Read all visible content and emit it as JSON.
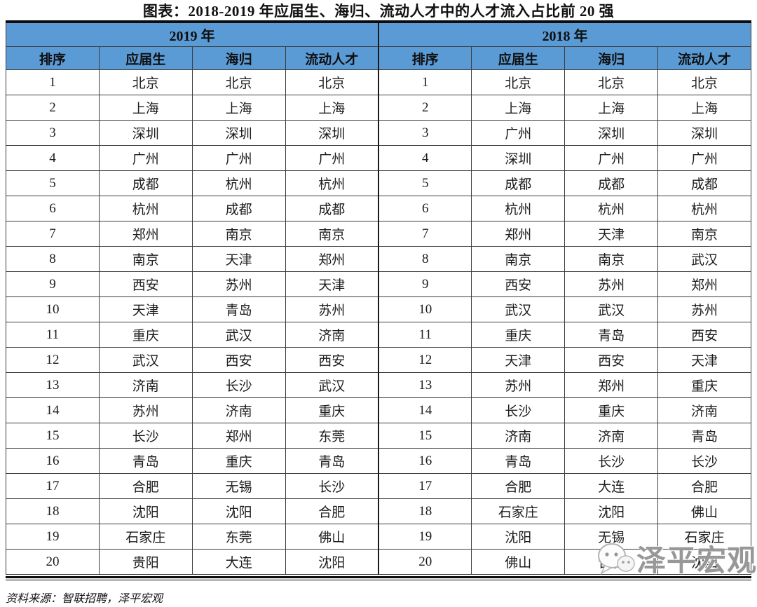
{
  "title": "图表：2018-2019 年应届生、海归、流动人才中的人才流入占比前 20 强",
  "chart_data": {
    "type": "table",
    "title": "图表：2018-2019 年应届生、海归、流动人才中的人才流入占比前 20 强",
    "year_headers": [
      "2019 年",
      "2018 年"
    ],
    "column_headers": [
      "排序",
      "应届生",
      "海归",
      "流动人才",
      "排序",
      "应届生",
      "海归",
      "流动人才"
    ],
    "rows": [
      [
        "1",
        "北京",
        "北京",
        "北京",
        "1",
        "北京",
        "北京",
        "北京"
      ],
      [
        "2",
        "上海",
        "上海",
        "上海",
        "2",
        "上海",
        "上海",
        "上海"
      ],
      [
        "3",
        "深圳",
        "深圳",
        "深圳",
        "3",
        "广州",
        "深圳",
        "深圳"
      ],
      [
        "4",
        "广州",
        "广州",
        "广州",
        "4",
        "深圳",
        "广州",
        "广州"
      ],
      [
        "5",
        "成都",
        "杭州",
        "杭州",
        "5",
        "成都",
        "成都",
        "成都"
      ],
      [
        "6",
        "杭州",
        "成都",
        "成都",
        "6",
        "杭州",
        "杭州",
        "杭州"
      ],
      [
        "7",
        "郑州",
        "南京",
        "南京",
        "7",
        "郑州",
        "天津",
        "南京"
      ],
      [
        "8",
        "南京",
        "天津",
        "郑州",
        "8",
        "南京",
        "南京",
        "武汉"
      ],
      [
        "9",
        "西安",
        "苏州",
        "天津",
        "9",
        "西安",
        "苏州",
        "郑州"
      ],
      [
        "10",
        "天津",
        "青岛",
        "苏州",
        "10",
        "武汉",
        "武汉",
        "苏州"
      ],
      [
        "11",
        "重庆",
        "武汉",
        "济南",
        "11",
        "重庆",
        "青岛",
        "西安"
      ],
      [
        "12",
        "武汉",
        "西安",
        "西安",
        "12",
        "天津",
        "西安",
        "天津"
      ],
      [
        "13",
        "济南",
        "长沙",
        "武汉",
        "13",
        "苏州",
        "郑州",
        "重庆"
      ],
      [
        "14",
        "苏州",
        "济南",
        "重庆",
        "14",
        "长沙",
        "重庆",
        "济南"
      ],
      [
        "15",
        "长沙",
        "郑州",
        "东莞",
        "15",
        "济南",
        "济南",
        "青岛"
      ],
      [
        "16",
        "青岛",
        "重庆",
        "青岛",
        "16",
        "青岛",
        "长沙",
        "长沙"
      ],
      [
        "17",
        "合肥",
        "无锡",
        "长沙",
        "17",
        "合肥",
        "大连",
        "合肥"
      ],
      [
        "18",
        "沈阳",
        "沈阳",
        "合肥",
        "18",
        "石家庄",
        "沈阳",
        "佛山"
      ],
      [
        "19",
        "石家庄",
        "东莞",
        "佛山",
        "19",
        "沈阳",
        "无锡",
        "石家庄"
      ],
      [
        "20",
        "贵阳",
        "大连",
        "沈阳",
        "20",
        "佛山",
        "合肥",
        "沈阳"
      ]
    ]
  },
  "footer": {
    "source": "资料来源：智联招聘，泽平宏观"
  },
  "watermark": {
    "icon": "wechat-logo-icon",
    "text": "泽平宏观"
  },
  "colors": {
    "header_blue": "#5B9BD5",
    "border_dark": "#0d0d0d",
    "grid_line": "#3c3c3c",
    "watermark_grey": "#8a8a8a"
  }
}
